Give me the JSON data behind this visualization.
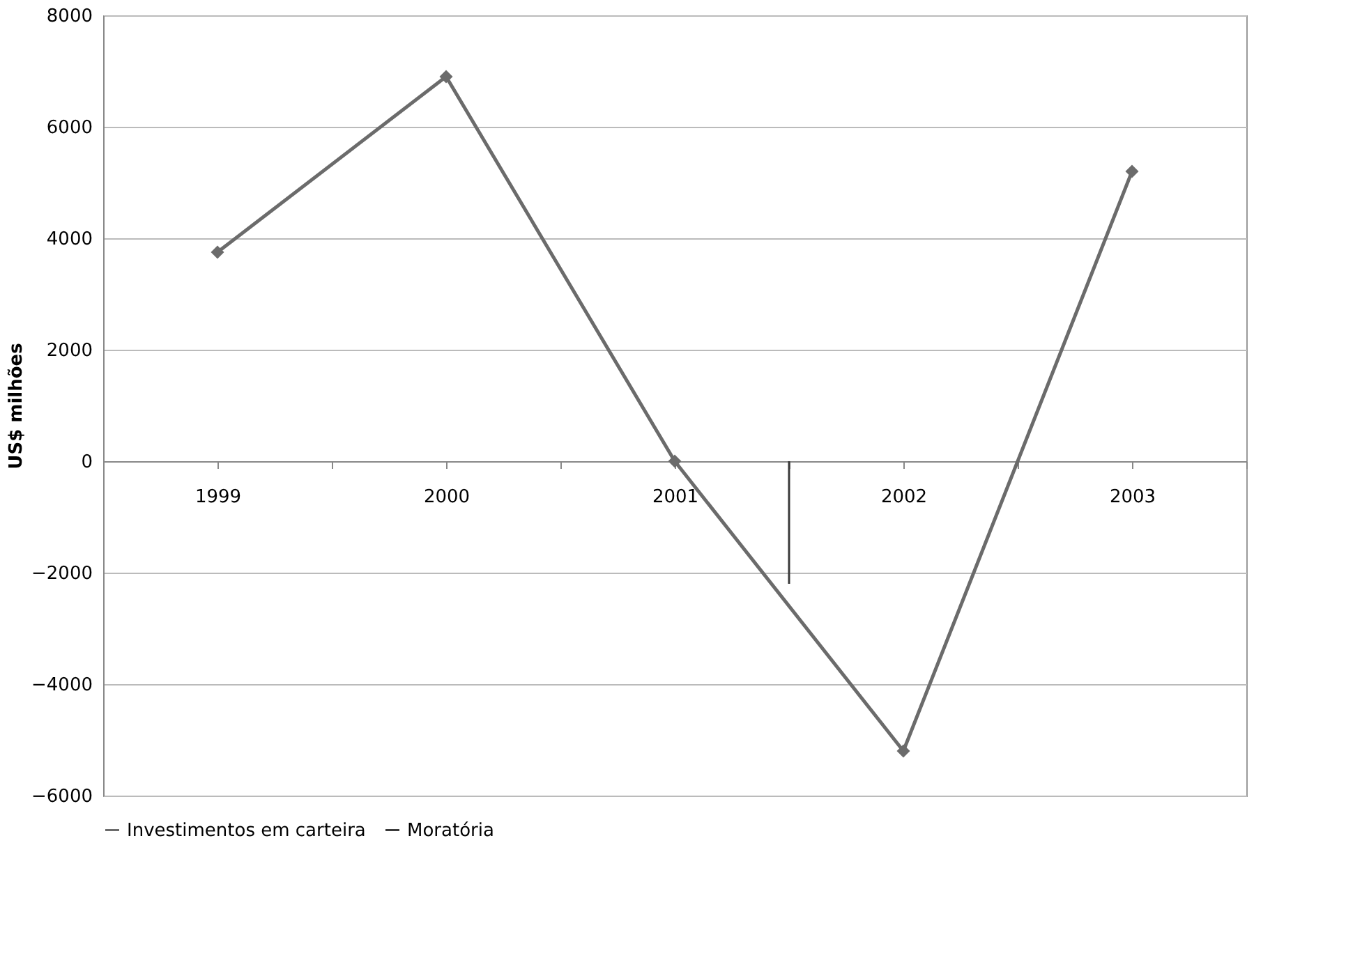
{
  "chart_data": {
    "type": "line",
    "ylabel": "US$ milhões",
    "xlim": [
      1998.5,
      2003.5
    ],
    "xticks": [
      {
        "value": 1998.5,
        "label": null
      },
      1999,
      {
        "value": 1999.5,
        "label": null
      },
      2000,
      {
        "value": 2000.5,
        "label": null
      },
      2001,
      {
        "value": 2001.5,
        "label": null
      },
      2002,
      {
        "value": 2002.5,
        "label": null
      },
      2003,
      {
        "value": 2003.5,
        "label": null
      }
    ],
    "ylim": [
      -6000,
      8000
    ],
    "yticks": [
      -6000,
      -4000,
      -2000,
      0,
      2000,
      4000,
      6000,
      8000
    ],
    "grid": "y",
    "legend": "bottom",
    "line_style": "solid",
    "series": [
      {
        "name": "Investimentos em carteira",
        "color": "#6b6b6b",
        "marker": "diamond",
        "x": [
          1999,
          2000,
          2001,
          2002,
          2003
        ],
        "values": [
          3750,
          6900,
          0,
          -5200,
          5200
        ]
      },
      {
        "name": "Moratória",
        "color": "#3a3a3a",
        "marker": "none",
        "x": [
          2001.5,
          2001.5
        ],
        "values": [
          0,
          -2200
        ]
      }
    ]
  }
}
